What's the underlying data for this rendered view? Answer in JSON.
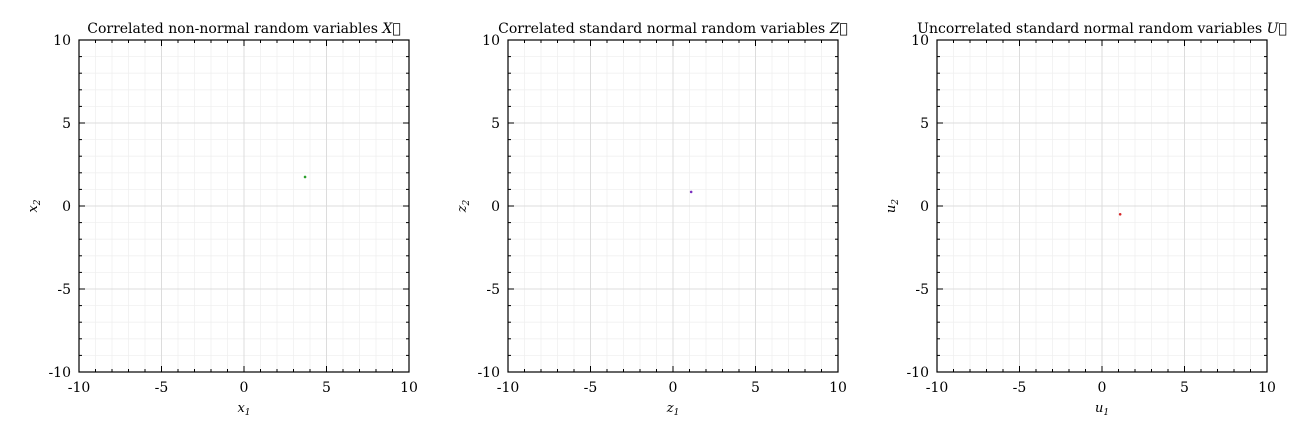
{
  "chart_data": [
    {
      "type": "scatter",
      "title": "Correlated non-normal random variables",
      "title_symbol": "X",
      "xlabel": {
        "base": "x",
        "sub": "1"
      },
      "ylabel": {
        "base": "x",
        "sub": "2"
      },
      "xlim": [
        -10,
        10
      ],
      "ylim": [
        -10,
        10
      ],
      "xticks": [
        "-10",
        "-5",
        "0",
        "5",
        "10"
      ],
      "yticks": [
        "-10",
        "-5",
        "0",
        "5",
        "10"
      ],
      "grid": true,
      "points": [
        {
          "x": 3.7,
          "y": 1.75
        }
      ],
      "color": "#2ca02c"
    },
    {
      "type": "scatter",
      "title": "Correlated standard normal random variables",
      "title_symbol": "Z",
      "xlabel": {
        "base": "z",
        "sub": "1"
      },
      "ylabel": {
        "base": "z",
        "sub": "2"
      },
      "xlim": [
        -10,
        10
      ],
      "ylim": [
        -10,
        10
      ],
      "xticks": [
        "-10",
        "-5",
        "0",
        "5",
        "10"
      ],
      "yticks": [
        "-10",
        "-5",
        "0",
        "5",
        "10"
      ],
      "grid": true,
      "points": [
        {
          "x": 1.1,
          "y": 0.85
        }
      ],
      "color": "#7b2fbf"
    },
    {
      "type": "scatter",
      "title": "Uncorrelated standard normal random variables",
      "title_symbol": "U",
      "xlabel": {
        "base": "u",
        "sub": "1"
      },
      "ylabel": {
        "base": "u",
        "sub": "2"
      },
      "xlim": [
        -10,
        10
      ],
      "ylim": [
        -10,
        10
      ],
      "xticks": [
        "-10",
        "-5",
        "0",
        "5",
        "10"
      ],
      "yticks": [
        "-10",
        "-5",
        "0",
        "5",
        "10"
      ],
      "grid": true,
      "points": [
        {
          "x": 1.1,
          "y": -0.5
        }
      ],
      "color": "#d62728"
    }
  ]
}
